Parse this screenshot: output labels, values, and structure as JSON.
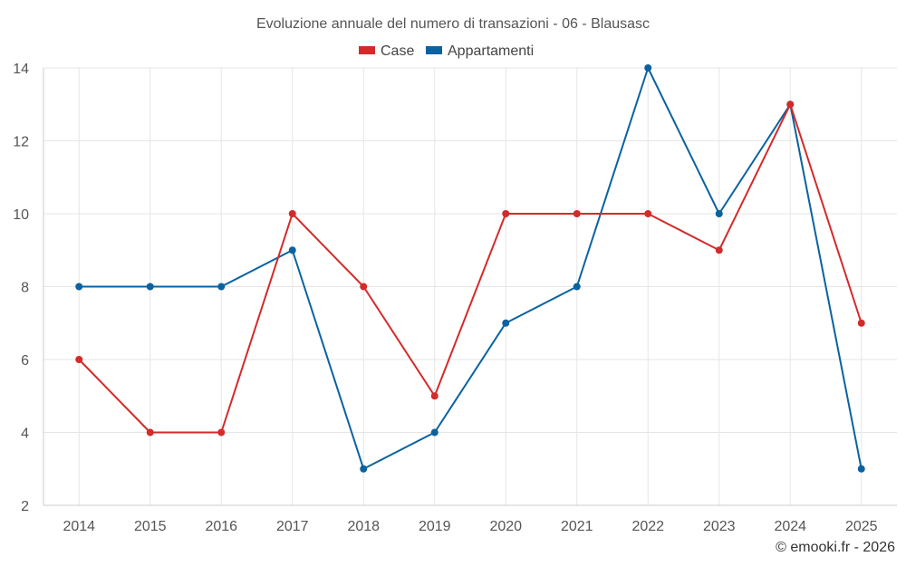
{
  "chart_data": {
    "type": "line",
    "title": "Evoluzione annuale del numero di transazioni - 06 - Blausasc",
    "categories": [
      "2014",
      "2015",
      "2016",
      "2017",
      "2018",
      "2019",
      "2020",
      "2021",
      "2022",
      "2023",
      "2024",
      "2025"
    ],
    "series": [
      {
        "name": "Case",
        "color": "#d42a2a",
        "values": [
          6,
          4,
          4,
          10,
          8,
          5,
          10,
          10,
          10,
          9,
          13,
          7
        ]
      },
      {
        "name": "Appartamenti",
        "color": "#0a62a0",
        "values": [
          8,
          8,
          8,
          9,
          3,
          4,
          7,
          8,
          14,
          10,
          13,
          3
        ]
      }
    ],
    "ylim": [
      2,
      14
    ],
    "yticks": [
      2,
      4,
      6,
      8,
      10,
      12,
      14
    ],
    "xlabel": "",
    "ylabel": "",
    "legend": "top-center",
    "grid": true
  },
  "credit": "© emooki.fr - 2026"
}
